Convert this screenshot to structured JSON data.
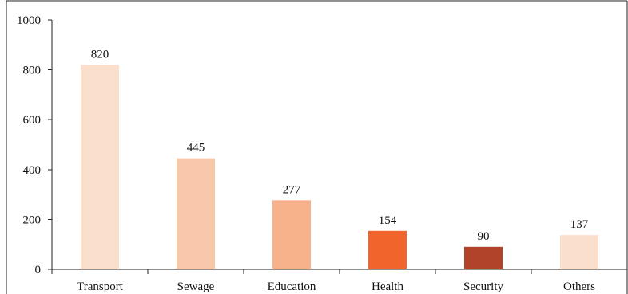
{
  "chart_data": {
    "type": "bar",
    "title": "",
    "xlabel": "",
    "ylabel": "",
    "categories": [
      "Transport",
      "Sewage",
      "Education",
      "Health",
      "Security",
      "Others"
    ],
    "values": [
      820,
      445,
      277,
      154,
      90,
      137
    ],
    "data_labels": [
      "820",
      "445",
      "277",
      "154",
      "90",
      "137"
    ],
    "bar_colors": [
      "#fbdfcd",
      "#f9c7aa",
      "#f7b28c",
      "#f1642c",
      "#b1432b",
      "#fbdfcd"
    ],
    "ylim": [
      0,
      1000
    ],
    "yticks": [
      0,
      200,
      400,
      600,
      800,
      1000
    ],
    "ytick_labels": [
      "0",
      "200",
      "400",
      "600",
      "800",
      "1000"
    ],
    "grid": false,
    "legend": "none"
  }
}
